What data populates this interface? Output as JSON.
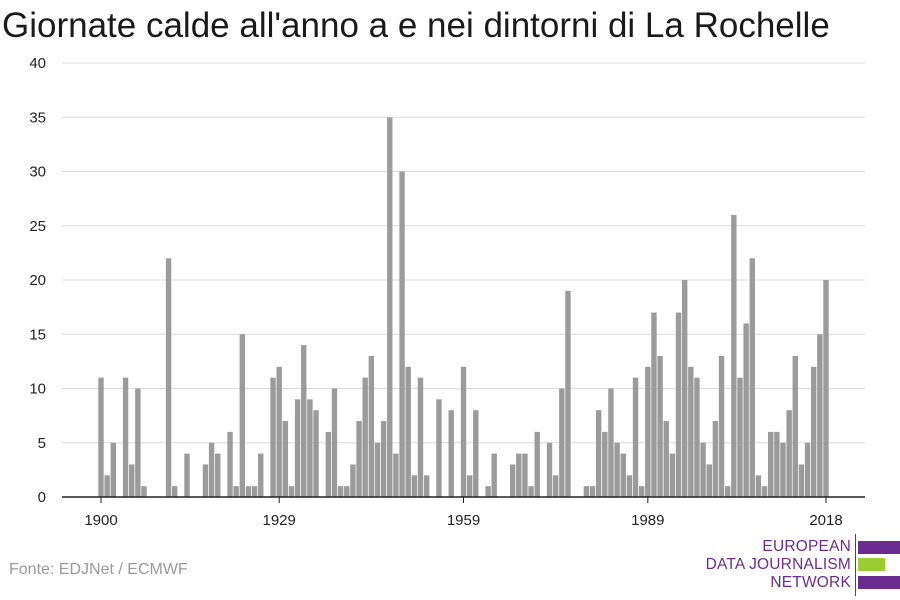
{
  "title": "Giornate calde all'anno a e nei dintorni di La Rochelle",
  "source": "Fonte: EDJNet / ECMWF",
  "logo": {
    "line1": "EUROPEAN",
    "line2": "DATA JOURNALISM",
    "line3": "NETWORK",
    "colors": {
      "purple": "#6a2c91",
      "green": "#9acd32"
    }
  },
  "chart_data": {
    "type": "bar",
    "title": "Giornate calde all'anno a e nei dintorni di La Rochelle",
    "xlabel": "",
    "ylabel": "",
    "x_start": 1900,
    "x_end": 2018,
    "x_ticks": [
      1900,
      1929,
      1959,
      1989,
      2018
    ],
    "y_ticks": [
      0,
      5,
      10,
      15,
      20,
      25,
      30,
      35,
      40
    ],
    "ylim": [
      0,
      40
    ],
    "grid": true,
    "bar_color": "#9b9b9b",
    "values": [
      11,
      2,
      5,
      0,
      11,
      3,
      10,
      1,
      0,
      0,
      0,
      22,
      1,
      0,
      4,
      0,
      0,
      3,
      5,
      4,
      0,
      6,
      1,
      15,
      1,
      1,
      4,
      0,
      11,
      12,
      7,
      1,
      9,
      14,
      9,
      8,
      0,
      6,
      10,
      1,
      1,
      3,
      7,
      11,
      13,
      5,
      7,
      35,
      4,
      30,
      12,
      2,
      11,
      2,
      0,
      9,
      0,
      8,
      0,
      12,
      2,
      8,
      0,
      1,
      4,
      0,
      0,
      3,
      4,
      4,
      1,
      6,
      0,
      5,
      2,
      10,
      19,
      0,
      0,
      1,
      1,
      8,
      6,
      10,
      5,
      4,
      2,
      11,
      1,
      12,
      17,
      13,
      7,
      4,
      17,
      20,
      12,
      11,
      5,
      3,
      7,
      13,
      1,
      26,
      11,
      16,
      22,
      2,
      1,
      6,
      6,
      5,
      8,
      13,
      3,
      5,
      12,
      15,
      20
    ]
  }
}
